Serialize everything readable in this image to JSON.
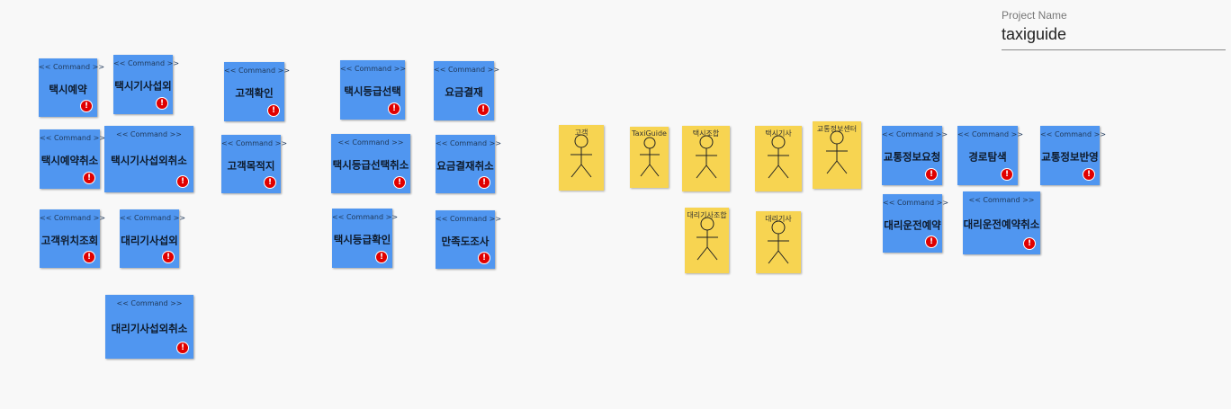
{
  "project": {
    "label": "Project Name",
    "value": "taxiguide"
  },
  "stereotype": "<< Command >>",
  "warn_glyph": "!",
  "colors": {
    "command": "#5096f0",
    "actor": "#f7d451",
    "warning": "#e00000",
    "canvas": "#f8f8f8"
  },
  "commands": [
    "택시예약",
    "택시기사섭외",
    "고객확인",
    "택시등급선택",
    "요금결재",
    "택시예약취소",
    "택시기사섭외취소",
    "고객목적지",
    "택시등급선택취소",
    "요금결재취소",
    "고객위치조회",
    "대리기사섭외",
    "택시등급확인",
    "만족도조사",
    "대리기사섭외취소",
    "교통정보요청",
    "경로탐색",
    "교통정보반영",
    "대리운전예약",
    "대리운전예약취소"
  ],
  "actors": [
    "고객",
    "TaxiGuide",
    "택시조합",
    "택시기사",
    "교통정보센터",
    "대리기사조합",
    "대리기사"
  ]
}
